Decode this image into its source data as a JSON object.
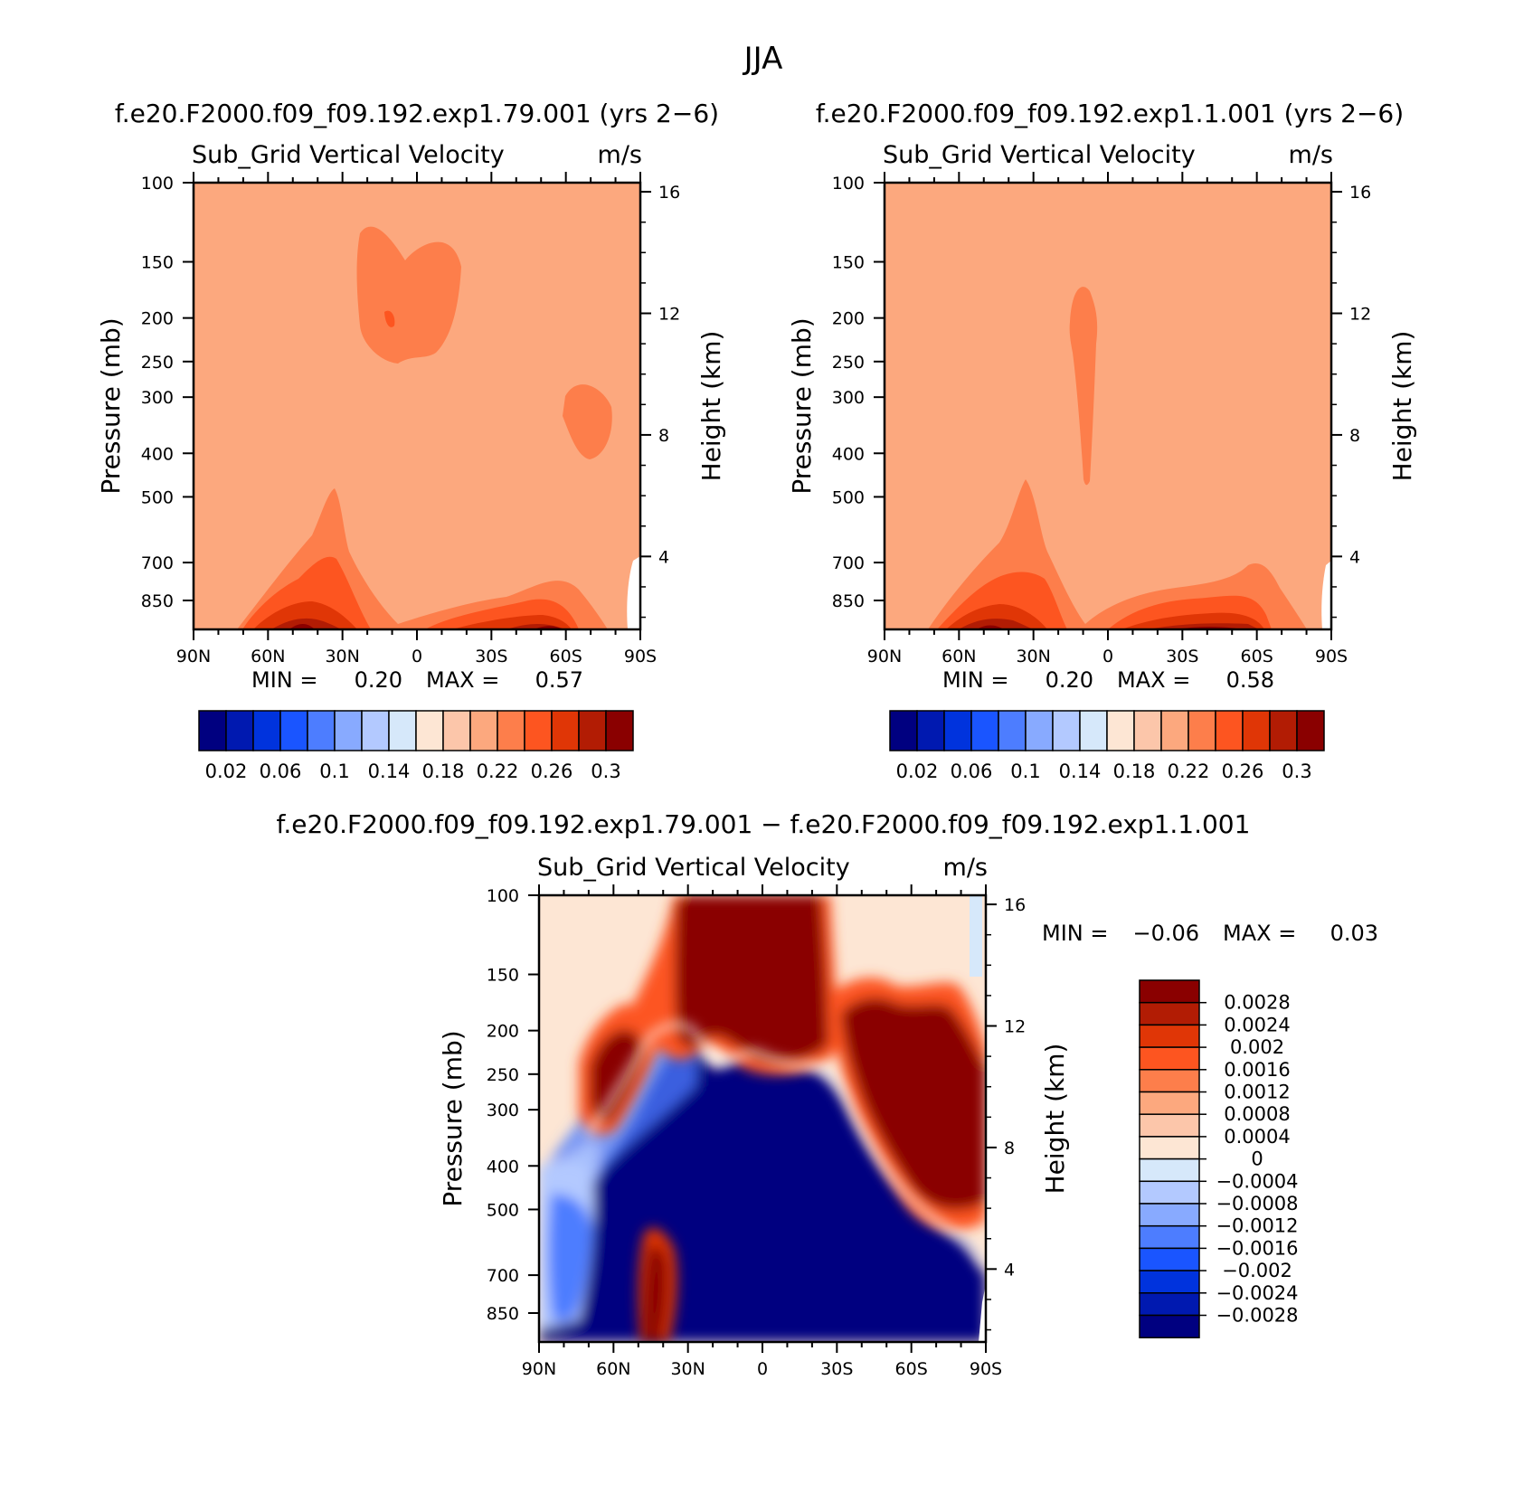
{
  "figure": {
    "title": "JJA",
    "colors": {
      "abs": [
        "#000080",
        "#0019b0",
        "#0033dd",
        "#1a55ff",
        "#4d7dff",
        "#88aaff",
        "#b3c9ff",
        "#d6e8fa",
        "#fde6d4",
        "#fcc6aa",
        "#fca87e",
        "#fd7e4b",
        "#fd5520",
        "#e03606",
        "#b21c04",
        "#8a0000"
      ],
      "diff": [
        "#000080",
        "#0019b0",
        "#0033dd",
        "#1a55ff",
        "#4d7dff",
        "#88aaff",
        "#b3c9ff",
        "#d6e8fa",
        "#fde6d4",
        "#fcc6aa",
        "#fca87e",
        "#fd7e4b",
        "#fd5520",
        "#e03606",
        "#b21c04",
        "#8a0000"
      ]
    }
  },
  "chart_data": [
    {
      "type": "heatmap",
      "panel": "top-left",
      "header": "f.e20.F2000.f09_f09.192.exp1.79.001 (yrs 2−6)",
      "title": "Sub_Grid Vertical Velocity",
      "units": "m/s",
      "ylabel": "Pressure (mb)",
      "ylabel_right": "Height (km)",
      "x_ticks": [
        "90N",
        "60N",
        "30N",
        "0",
        "30S",
        "60S",
        "90S"
      ],
      "y_ticks": [
        "100",
        "150",
        "200",
        "250",
        "300",
        "400",
        "500",
        "700",
        "850"
      ],
      "y_values": [
        100,
        150,
        200,
        250,
        300,
        400,
        500,
        700,
        850
      ],
      "right_ticks": [
        "16",
        "12",
        "8",
        "4"
      ],
      "stats": {
        "min_label": "MIN =",
        "min": "0.20",
        "max_label": "MAX =",
        "max": "0.57"
      },
      "colorbar_labels": [
        "0.02",
        "0.06",
        "0.1",
        "0.14",
        "0.18",
        "0.22",
        "0.26",
        "0.3"
      ],
      "colorbar_orientation": "horizontal",
      "background_level": 0.22
    },
    {
      "type": "heatmap",
      "panel": "top-right",
      "header": "f.e20.F2000.f09_f09.192.exp1.1.001 (yrs 2−6)",
      "title": "Sub_Grid Vertical Velocity",
      "units": "m/s",
      "ylabel": "Pressure (mb)",
      "ylabel_right": "Height (km)",
      "x_ticks": [
        "90N",
        "60N",
        "30N",
        "0",
        "30S",
        "60S",
        "90S"
      ],
      "y_ticks": [
        "100",
        "150",
        "200",
        "250",
        "300",
        "400",
        "500",
        "700",
        "850"
      ],
      "y_values": [
        100,
        150,
        200,
        250,
        300,
        400,
        500,
        700,
        850
      ],
      "right_ticks": [
        "16",
        "12",
        "8",
        "4"
      ],
      "stats": {
        "min_label": "MIN =",
        "min": "0.20",
        "max_label": "MAX =",
        "max": "0.58"
      },
      "colorbar_labels": [
        "0.02",
        "0.06",
        "0.1",
        "0.14",
        "0.18",
        "0.22",
        "0.26",
        "0.3"
      ],
      "colorbar_orientation": "horizontal",
      "background_level": 0.22
    },
    {
      "type": "heatmap",
      "panel": "bottom",
      "header": "f.e20.F2000.f09_f09.192.exp1.79.001 − f.e20.F2000.f09_f09.192.exp1.1.001",
      "title": "Sub_Grid Vertical Velocity",
      "units": "m/s",
      "ylabel": "Pressure (mb)",
      "ylabel_right": "Height (km)",
      "x_ticks": [
        "90N",
        "60N",
        "30N",
        "0",
        "30S",
        "60S",
        "90S"
      ],
      "y_ticks": [
        "100",
        "150",
        "200",
        "250",
        "300",
        "400",
        "500",
        "700",
        "850"
      ],
      "y_values": [
        100,
        150,
        200,
        250,
        300,
        400,
        500,
        700,
        850
      ],
      "right_ticks": [
        "16",
        "12",
        "8",
        "4"
      ],
      "stats": {
        "min_label": "MIN =",
        "min": "−0.06",
        "max_label": "MAX =",
        "max": "0.03"
      },
      "colorbar_labels": [
        "0.0028",
        "0.0024",
        "0.002",
        "0.0016",
        "0.0012",
        "0.0008",
        "0.0004",
        "0",
        "−0.0004",
        "−0.0008",
        "−0.0012",
        "−0.0016",
        "−0.002",
        "−0.0024",
        "−0.0028"
      ],
      "colorbar_orientation": "vertical"
    }
  ]
}
